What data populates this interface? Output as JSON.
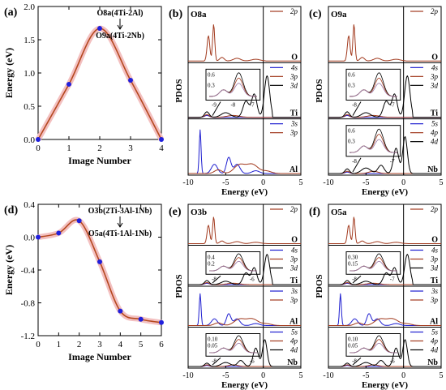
{
  "chart_data": [
    {
      "panel": "(a)",
      "type": "line",
      "xlabel": "Image Number",
      "ylabel": "Energy (eV)",
      "xlim": [
        0,
        4
      ],
      "ylim": [
        0.0,
        2.0
      ],
      "xticks": [
        "0",
        "1",
        "2",
        "3",
        "4"
      ],
      "yticks": [
        "0.0",
        "0.5",
        "1.0",
        "1.5",
        "2.0"
      ],
      "annotation_top": "O8a(4Ti-2Al)",
      "annotation_bottom": "O9a(4Ti-2Nb)",
      "points": {
        "x": [
          0,
          1,
          2,
          3,
          4
        ],
        "y": [
          0.0,
          0.83,
          1.67,
          0.89,
          0.0
        ]
      }
    },
    {
      "panel": "(d)",
      "type": "line",
      "xlabel": "Image Number",
      "ylabel": "Energy (eV)",
      "xlim": [
        0,
        6
      ],
      "ylim": [
        -1.2,
        0.4
      ],
      "xticks": [
        "0",
        "1",
        "2",
        "3",
        "4",
        "5",
        "6"
      ],
      "yticks": [
        "-1.2",
        "-0.8",
        "-0.4",
        "0.0",
        "0.4"
      ],
      "annotation_top": "O3b(2Ti-3Al-1Nb)",
      "annotation_bottom": "O5a(4Ti-1Al-1Nb)",
      "points": {
        "x": [
          0,
          1,
          2,
          3,
          4,
          5,
          6
        ],
        "y": [
          0.0,
          0.05,
          0.2,
          -0.3,
          -0.9,
          -1.0,
          -1.04
        ]
      }
    },
    {
      "panel": "(b)",
      "type": "line",
      "title": "O8a",
      "xlabel": "Energy (eV)",
      "ylabel": "PDOS",
      "xlim": [
        -10,
        5
      ],
      "xticks": [
        "-10",
        "-5",
        "0",
        "5"
      ],
      "rows": [
        {
          "element": "O",
          "legend": [
            "2p"
          ]
        },
        {
          "element": "Ti",
          "legend": [
            "4s",
            "3p",
            "3d"
          ],
          "inset": {
            "yticks": [
              "0.3",
              "0.6"
            ],
            "xticks": [
              "-9",
              "-8",
              "-7"
            ]
          }
        },
        {
          "element": "Al",
          "legend": [
            "3s",
            "3p"
          ]
        }
      ]
    },
    {
      "panel": "(c)",
      "type": "line",
      "title": "O9a",
      "xlabel": "Energy (eV)",
      "ylabel": "PDOS",
      "xlim": [
        -10,
        5
      ],
      "xticks": [
        "-10",
        "-5",
        "0",
        "5"
      ],
      "rows": [
        {
          "element": "O",
          "legend": [
            "2p"
          ]
        },
        {
          "element": "Ti",
          "legend": [
            "4s",
            "3p",
            "3d"
          ],
          "inset": {
            "yticks": [
              "0.3",
              "0.6"
            ],
            "xticks": [
              "-8",
              "-7"
            ]
          }
        },
        {
          "element": "Nb",
          "legend": [
            "5s",
            "4p",
            "4d"
          ],
          "inset": {
            "yticks": [
              "0.3",
              "0.6"
            ],
            "xticks": [
              "-8",
              "-7"
            ]
          }
        }
      ]
    },
    {
      "panel": "(e)",
      "type": "line",
      "title": "O3b",
      "xlabel": "Energy (eV)",
      "ylabel": "PDOS",
      "xlim": [
        -10,
        5
      ],
      "xticks": [
        "-10",
        "-5",
        "0",
        "5"
      ],
      "rows": [
        {
          "element": "O",
          "legend": [
            "2p"
          ]
        },
        {
          "element": "Ti",
          "legend": [
            "4s",
            "3p",
            "3d"
          ],
          "inset": {
            "yticks": [
              "0.2",
              "0.4"
            ],
            "xticks": [
              "-8",
              "-6"
            ]
          }
        },
        {
          "element": "Al",
          "legend": [
            "3s",
            "3p"
          ]
        },
        {
          "element": "Nb",
          "legend": [
            "5s",
            "4p",
            "4d"
          ],
          "inset": {
            "yticks": [
              "0.05",
              "0.10"
            ],
            "xticks": [
              "-8",
              "-6"
            ]
          }
        }
      ]
    },
    {
      "panel": "(f)",
      "type": "line",
      "title": "O5a",
      "xlabel": "Energy (eV)",
      "ylabel": "PDOS",
      "xlim": [
        -10,
        5
      ],
      "xticks": [
        "-10",
        "-5",
        "0",
        "5"
      ],
      "rows": [
        {
          "element": "O",
          "legend": [
            "2p"
          ]
        },
        {
          "element": "Ti",
          "legend": [
            "4s",
            "3p",
            "3d"
          ],
          "inset": {
            "yticks": [
              "0.15",
              "0.30"
            ],
            "xticks": [
              "-8",
              "-7"
            ]
          }
        },
        {
          "element": "Al",
          "legend": [
            "3s",
            "3p"
          ]
        },
        {
          "element": "Nb",
          "legend": [
            "5s",
            "4p",
            "4d"
          ],
          "inset": {
            "yticks": [
              "0.05",
              "0.10"
            ],
            "xticks": [
              "-8",
              "-6"
            ]
          }
        }
      ]
    }
  ],
  "colors": {
    "curve": "#b5481f",
    "shade": "#f3c0c0",
    "points": "#2020dd",
    "red": "#a23a1e",
    "blue": "#1f1fd0",
    "black": "#000000",
    "purple": "#9a7aa8"
  }
}
